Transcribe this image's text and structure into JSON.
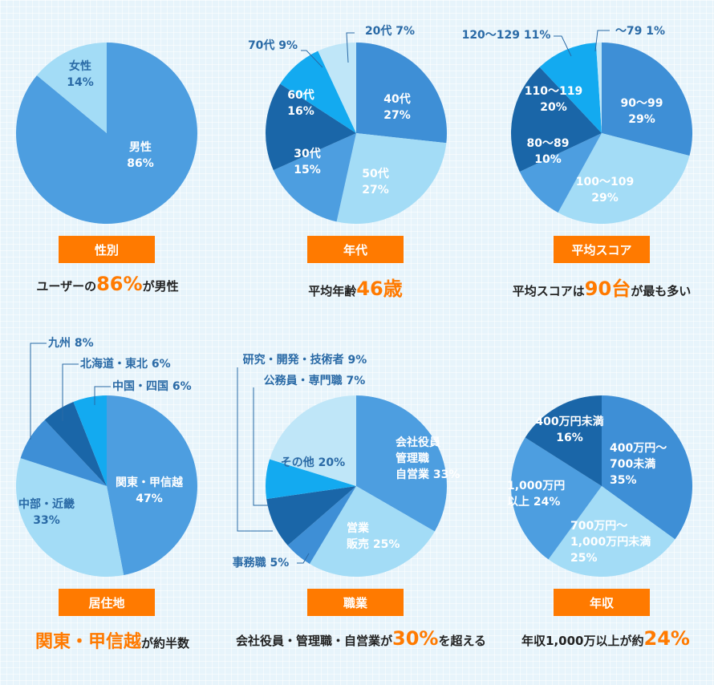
{
  "colors": {
    "accent": "#ff7a00",
    "dark": "#1a66a8",
    "mid": "#3e8fd6",
    "mid2": "#4d9ee0",
    "light": "#a3dcf6",
    "bright": "#13aaf0",
    "pale": "#bfe6f8"
  },
  "chart_data": [
    {
      "type": "pie",
      "title": "性別",
      "slices": [
        {
          "label": "男性",
          "value": 86,
          "display": "86%"
        },
        {
          "label": "女性",
          "value": 14,
          "display": "14%"
        }
      ]
    },
    {
      "type": "pie",
      "title": "年代",
      "slices": [
        {
          "label": "40代",
          "value": 27,
          "display": "27%"
        },
        {
          "label": "50代",
          "value": 27,
          "display": "27%"
        },
        {
          "label": "30代",
          "value": 15,
          "display": "15%"
        },
        {
          "label": "60代",
          "value": 16,
          "display": "16%"
        },
        {
          "label": "70代",
          "value": 9,
          "display": "9%"
        },
        {
          "label": "20代",
          "value": 7,
          "display": "7%"
        }
      ]
    },
    {
      "type": "pie",
      "title": "平均スコア",
      "slices": [
        {
          "label": "90～99",
          "value": 29,
          "display": "29%"
        },
        {
          "label": "100～109",
          "value": 29,
          "display": "29%"
        },
        {
          "label": "80～89",
          "value": 10,
          "display": "10%"
        },
        {
          "label": "110～119",
          "value": 20,
          "display": "20%"
        },
        {
          "label": "120～129",
          "value": 11,
          "display": "11%"
        },
        {
          "label": "～79",
          "value": 1,
          "display": "1%"
        }
      ]
    },
    {
      "type": "pie",
      "title": "居住地",
      "slices": [
        {
          "label": "関東・甲信越",
          "value": 47,
          "display": "47%"
        },
        {
          "label": "中部・近畿",
          "value": 33,
          "display": "33%"
        },
        {
          "label": "九州",
          "value": 8,
          "display": "8%"
        },
        {
          "label": "北海道・東北",
          "value": 6,
          "display": "6%"
        },
        {
          "label": "中国・四国",
          "value": 6,
          "display": "6%"
        }
      ]
    },
    {
      "type": "pie",
      "title": "職業",
      "slices": [
        {
          "label": "会社役員 管理職 自営業",
          "value": 33,
          "display": "33%"
        },
        {
          "label": "営業 販売",
          "value": 25,
          "display": "25%"
        },
        {
          "label": "事務職",
          "value": 5,
          "display": "5%"
        },
        {
          "label": "研究・開発・技術者",
          "value": 9,
          "display": "9%"
        },
        {
          "label": "公務員・専門職",
          "value": 7,
          "display": "7%"
        },
        {
          "label": "その他",
          "value": 20,
          "display": "20%"
        }
      ]
    },
    {
      "type": "pie",
      "title": "年収",
      "slices": [
        {
          "label": "400万円～700未満",
          "value": 35,
          "display": "35%"
        },
        {
          "label": "700万円～1,000万円未満",
          "value": 25,
          "display": "25%"
        },
        {
          "label": "1,000万円以上",
          "value": 24,
          "display": "24%"
        },
        {
          "label": "400万円未満",
          "value": 16,
          "display": "16%"
        }
      ]
    }
  ],
  "captions": {
    "gender": {
      "pre": "ユーザーの",
      "hl": "86%",
      "post": "が男性"
    },
    "age": {
      "pre": "平均年齢",
      "hl": "46歳",
      "post": ""
    },
    "score": {
      "pre": "平均スコアは",
      "hl": "90台",
      "post": "が最も多い"
    },
    "region": {
      "hl": "関東・甲信越",
      "post": "が約半数"
    },
    "job": {
      "pre": "会社役員・管理職・自営業が",
      "hl": "30%",
      "post": "を超える"
    },
    "income": {
      "pre": "年収1,000万以上が約",
      "hl": "24%",
      "post": ""
    }
  }
}
